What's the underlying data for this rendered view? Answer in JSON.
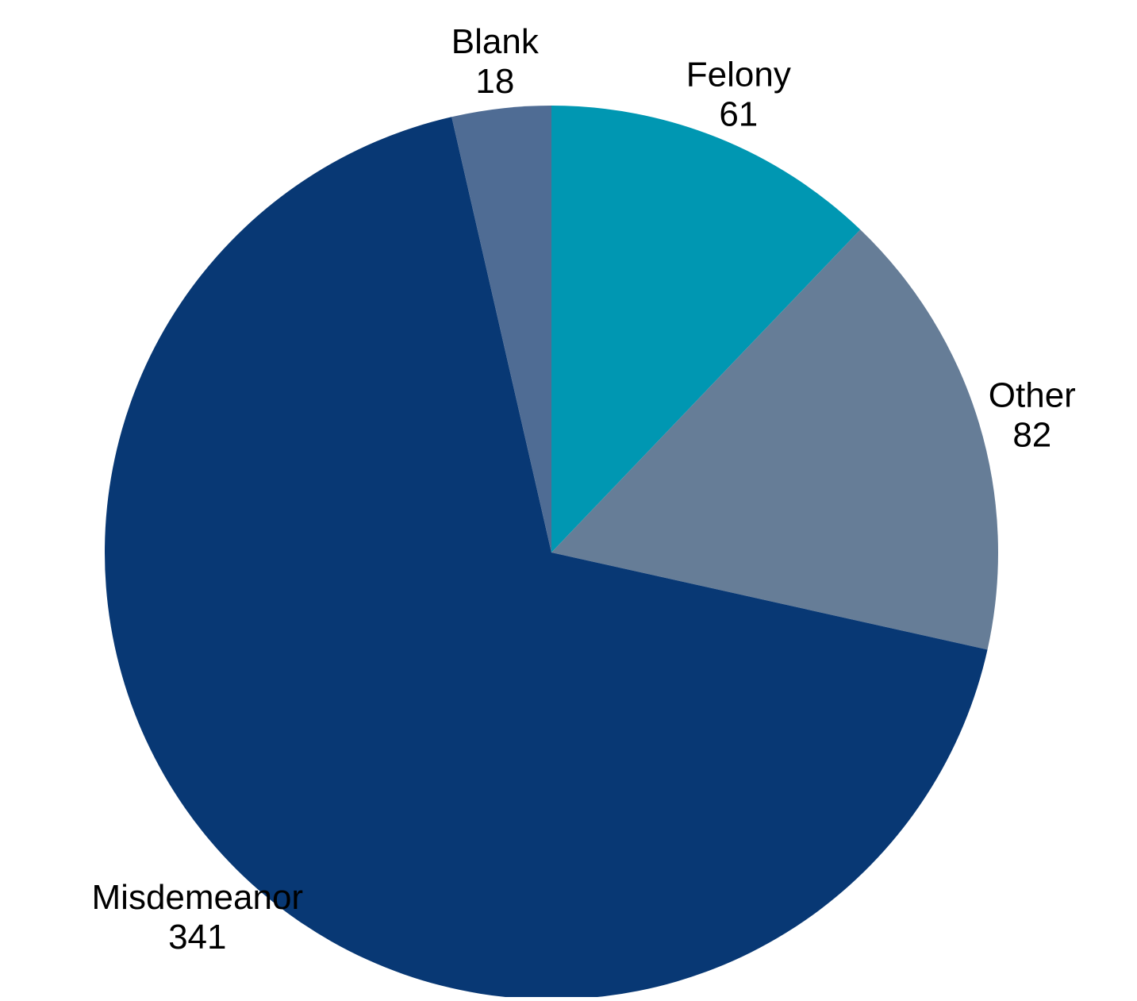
{
  "chart_data": {
    "type": "pie",
    "start": "12 o'clock",
    "direction": "clockwise",
    "slices": [
      {
        "label": "Felony",
        "value": 61,
        "display_value": "61",
        "color": "#0097B2"
      },
      {
        "label": "Other",
        "value": 82,
        "display_value": "82",
        "color": "#667D97"
      },
      {
        "label": "Misdemeanor",
        "value": 341,
        "display_value": "341",
        "color": "#083874"
      },
      {
        "label": "Blank",
        "value": 18,
        "display_value": "18",
        "color": "#4F6C94"
      }
    ],
    "data_labels": "category name and value, outside slices"
  }
}
